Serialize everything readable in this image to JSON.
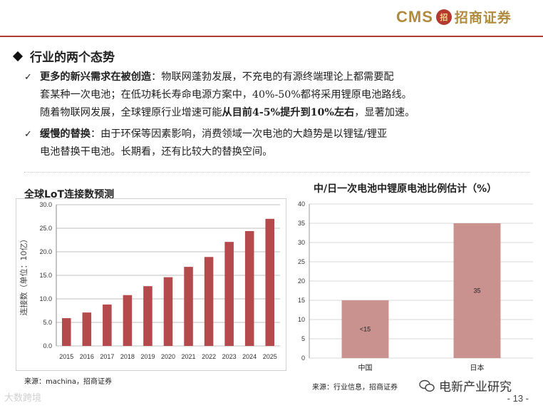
{
  "brand": {
    "cms": "CMS",
    "mark": "招",
    "name": "招商证券"
  },
  "section_title": "行业的两个态势",
  "bullets": [
    {
      "lead": "更多的新兴需求在被创造",
      "lines": [
        "：物联网蓬勃发展，不充电的有源终端理论上都需要配",
        "套某种一次电池；在低功耗长寿命电源方案中，40%-50%都将采用锂原电池路线。",
        "随着物联网发展，全球锂原行业增速可能",
        "从目前4-5%提升到10%左右",
        "，显著加速。"
      ]
    },
    {
      "lead": "缓慢的替换",
      "lines": [
        "：由于环保等因素影响，消费领域一次电池的大趋势是以锂锰/锂亚",
        "电池替换干电池。长期看，还有比较大的替换空间。"
      ]
    }
  ],
  "chart_left_title": "全球LoT连接数预测",
  "chart_right_title": "中/日一次电池中锂原电池比例估计（%）",
  "chart_data": [
    {
      "type": "bar",
      "title": "全球LoT连接数预测",
      "ylabel": "连接数（单位：10亿）",
      "xlabel": "",
      "categories": [
        "2015",
        "2016",
        "2017",
        "2018",
        "2019",
        "2020",
        "2021",
        "2022",
        "2023",
        "2024",
        "2025"
      ],
      "values": [
        5.9,
        7.1,
        8.8,
        10.8,
        12.7,
        14.6,
        16.8,
        18.9,
        22.1,
        24.4,
        27.0
      ],
      "ylim": [
        0,
        30
      ],
      "yticks": [
        "0.0",
        "5.0",
        "10.0",
        "15.0",
        "20.0",
        "25.0",
        "30.0"
      ],
      "color": "#b54a4d",
      "grid": true
    },
    {
      "type": "bar",
      "title": "中/日一次电池中锂原电池比例估计（%）",
      "xlabel": "",
      "ylabel": "",
      "categories": [
        "中国",
        "日本"
      ],
      "values": [
        15,
        35
      ],
      "labels": [
        "<15",
        "35"
      ],
      "ylim": [
        0,
        40
      ],
      "yticks": [
        "0",
        "5",
        "10",
        "15",
        "20",
        "25",
        "30",
        "35",
        "40"
      ],
      "color": "#c9928f",
      "grid": true
    }
  ],
  "source_left": "来源：machina，招商证券",
  "source_right": "来源：行业信息，招商证券",
  "watermark_left": "大数跨境",
  "watermark_right": "电新产业研究",
  "page_number": "- 13 -"
}
